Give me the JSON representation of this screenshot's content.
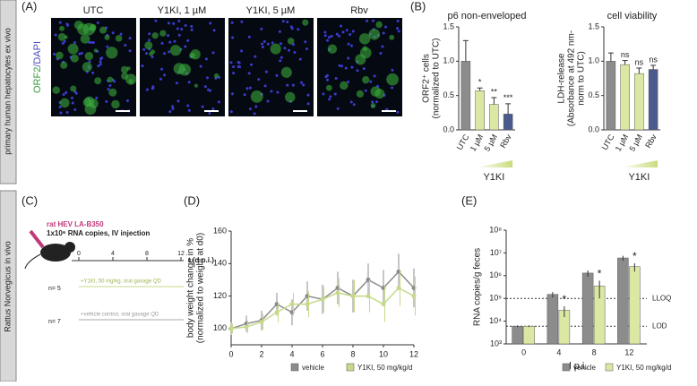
{
  "row_labels": [
    "primary human hepatocytes ex vivo",
    "Rattus Norvegicus in vivo"
  ],
  "panel_labels": [
    "(A)",
    "(B)",
    "(C)",
    "(D)",
    "(E)"
  ],
  "images": {
    "columns": [
      "UTC",
      "Y1KI, 1 µM",
      "Y1KI, 5 µM",
      "Rbv"
    ],
    "channel_labels": [
      "ORF2",
      "/DAPI"
    ]
  },
  "schematic": {
    "virus": "rat HEV LA-B350",
    "dose": "1x10⁶ RNA copies, IV injection",
    "timeline_ticks": [
      "0",
      "4",
      "8",
      "12"
    ],
    "time_label": "t (d p.i.)",
    "groups": [
      {
        "n": "n= 5",
        "treatment": "+Y1KI, 50 mg/kg, oral gavage QD"
      },
      {
        "n": "n= 7",
        "treatment": "+vehicle control, oral gavage QD"
      }
    ]
  },
  "chart_data": [
    {
      "type": "bar",
      "title": "p6 non-enveloped",
      "y_label": [
        "ORF2⁺ cells",
        "(normalized to UTC)"
      ],
      "categories": [
        "UTC",
        "1 µM",
        "5 µM",
        "Rbv"
      ],
      "values": [
        1.0,
        0.57,
        0.37,
        0.23
      ],
      "errors": [
        0.3,
        0.04,
        0.1,
        0.15
      ],
      "colors": [
        "#8c8c8c",
        "#dbe8a4",
        "#dbe8a4",
        "#4b5a8c"
      ],
      "annotations": [
        null,
        "*",
        "**",
        "***"
      ],
      "ylim": [
        0,
        1.5
      ],
      "yticks": [
        {
          "value": 0,
          "label": "0.0"
        },
        {
          "value": 0.5,
          "label": "0.5"
        },
        {
          "value": 1,
          "label": "1.0"
        },
        {
          "value": 1.5,
          "label": "1.5"
        }
      ],
      "group_label": "Y1KI"
    },
    {
      "type": "bar",
      "title": "cell viability",
      "y_label": [
        "LDH-release",
        "(Absorbance at 492 nm-",
        "norm to UTC)"
      ],
      "categories": [
        "UTC",
        "1 µM",
        "5 µM",
        "Rbv"
      ],
      "values": [
        1.0,
        0.95,
        0.82,
        0.88
      ],
      "errors": [
        0.12,
        0.06,
        0.08,
        0.06
      ],
      "colors": [
        "#8c8c8c",
        "#dbe8a4",
        "#dbe8a4",
        "#4b5a8c"
      ],
      "annotations": [
        null,
        "ns",
        "ns",
        "ns"
      ],
      "ylim": [
        0,
        1.5
      ],
      "yticks": [
        {
          "value": 0,
          "label": "0.0"
        },
        {
          "value": 0.5,
          "label": "0.5"
        },
        {
          "value": 1,
          "label": "1.0"
        },
        {
          "value": 1.5,
          "label": "1.5"
        }
      ],
      "group_label": "Y1KI"
    },
    {
      "type": "line",
      "y_label": [
        "body weight change in %",
        "(normalized to weight at d0)"
      ],
      "x": [
        0,
        1,
        2,
        3,
        4,
        5,
        6,
        7,
        8,
        9,
        10,
        11,
        12
      ],
      "series": [
        {
          "name": "vehicle",
          "color": "#8c8c8c",
          "values": [
            100,
            103,
            105,
            115,
            110,
            120,
            118,
            125,
            120,
            130,
            125,
            135,
            125
          ],
          "errors": [
            4,
            5,
            6,
            7,
            8,
            9,
            9,
            10,
            10,
            10,
            11,
            11,
            12
          ]
        },
        {
          "name": "Y1KI, 50 mg/kg/d",
          "color": "#c5d98a",
          "values": [
            100,
            101,
            104,
            110,
            115,
            115,
            118,
            122,
            120,
            120,
            115,
            125,
            120
          ],
          "errors": [
            3,
            4,
            5,
            6,
            7,
            8,
            8,
            9,
            10,
            10,
            11,
            11,
            12
          ]
        }
      ],
      "xlim": [
        0,
        12
      ],
      "xticks": [
        0,
        2,
        4,
        6,
        8,
        10,
        12
      ],
      "ylim": [
        90,
        160
      ],
      "yticks": [
        100,
        120,
        140,
        160
      ]
    },
    {
      "type": "logbar",
      "y_label": "RNA copies/g feces",
      "x_label": "d p.i.",
      "categories": [
        "0",
        "4",
        "8",
        "12"
      ],
      "series": [
        {
          "name": "vehicle",
          "color": "#8c8c8c",
          "values": [
            6000,
            150000,
            1300000,
            6000000
          ],
          "errors": [
            500,
            40000,
            400000,
            1500000
          ]
        },
        {
          "name": "Y1KI, 50 mg/kg/d",
          "color": "#dbe8a4",
          "values": [
            6000,
            30000,
            350000,
            2500000
          ],
          "errors": [
            500,
            15000,
            250000,
            1000000
          ],
          "annotations": [
            null,
            "*",
            "*",
            "*"
          ]
        }
      ],
      "ylim": [
        1000,
        100000000
      ],
      "log_y": true,
      "yticks": [
        {
          "value": 1000,
          "label": "10³"
        },
        {
          "value": 10000,
          "label": "10⁴"
        },
        {
          "value": 100000,
          "label": "10⁵"
        },
        {
          "value": 1000000,
          "label": "10⁶"
        },
        {
          "value": 10000000,
          "label": "10⁷"
        },
        {
          "value": 100000000,
          "label": "10⁸"
        }
      ],
      "reference_lines": [
        {
          "value": 100000,
          "label": "LLOQ"
        },
        {
          "value": 6000,
          "label": "LOD"
        }
      ]
    }
  ]
}
